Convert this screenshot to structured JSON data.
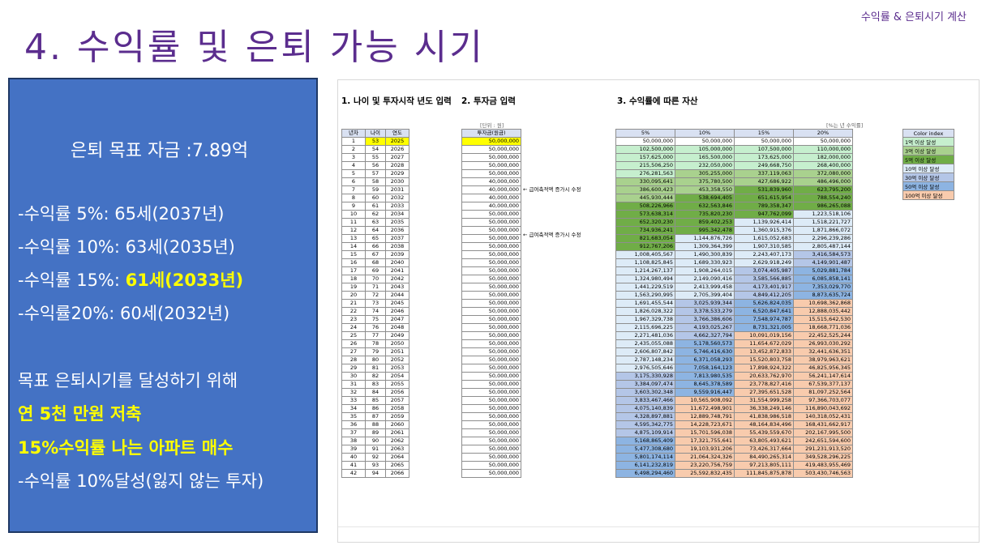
{
  "header": {
    "subtitle": "수익률 & 은퇴시기 계산",
    "title": "4. 수익률 및 은퇴 가능 시기"
  },
  "panel": {
    "goal": "은퇴 목표 자금 :7.89억",
    "r5": "-수익률 5%: 65세(2037년)",
    "r10": "-수익률 10%: 63세(2035년)",
    "r15_prefix": "-수익률 15%: ",
    "r15_value": "61세(2033년)",
    "r20": "-수익률20%: 60세(2032년)",
    "plan": "목표 은퇴시기를 달성하기 위해",
    "save": "연 5천 만원 저축",
    "apt": "15%수익률 나는 아파트 매수",
    "safe": "-수익률 10%달성(잃지 않는 투자)"
  },
  "sheet": {
    "section1": "1. 나이 및 투자시작 년도 입력",
    "section2": "2. 투자금 입력",
    "section3": "3. 수익률에 따른 자산",
    "unit_note": "[단위 : 원]",
    "rate_note": "[%는 년 수익률]",
    "col_year": "년차",
    "col_age": "나이",
    "col_yr": "연도",
    "col_invest": "투자금(원금)",
    "note_text": "← 급여축적액 증가시 수정",
    "rate_headers": [
      "5%",
      "10%",
      "15%",
      "20%"
    ],
    "legend_title": "Color index",
    "legend": [
      "1억 이상 달성",
      "3억 이상 달성",
      "5억 이상 달성",
      "10억 이상 달성",
      "30억 이상 달성",
      "50억 이상 달성",
      "100억 이상 달성"
    ],
    "legend_colors": [
      "#c6efce",
      "#a9d18e",
      "#70ad47",
      "#ddebf7",
      "#b4c6e7",
      "#8db4e2",
      "#f8cbad"
    ],
    "invest": [
      "50,000,000",
      "50,000,000",
      "50,000,000",
      "50,000,000",
      "50,000,000",
      "40,000,000",
      "40,000,000",
      "40,000,000",
      "40,000,000",
      "50,000,000",
      "50,000,000",
      "50,000,000",
      "50,000,000",
      "50,000,000",
      "50,000,000",
      "50,000,000",
      "50,000,000",
      "50,000,000",
      "50,000,000",
      "50,000,000",
      "50,000,000",
      "50,000,000",
      "50,000,000",
      "50,000,000",
      "50,000,000",
      "50,000,000",
      "50,000,000",
      "50,000,000",
      "50,000,000",
      "50,000,000",
      "50,000,000",
      "50,000,000",
      "50,000,000",
      "50,000,000",
      "50,000,000",
      "50,000,000",
      "50,000,000",
      "50,000,000",
      "50,000,000",
      "50,000,000",
      "50,000,000",
      "50,000,000"
    ],
    "r5": [
      "50,000,000",
      "102,500,000",
      "157,625,000",
      "215,506,250",
      "276,281,563",
      "330,095,641",
      "386,600,423",
      "445,930,444",
      "508,226,966",
      "573,638,314",
      "652,320,230",
      "734,936,241",
      "821,683,054",
      "912,767,206",
      "1,008,405,567",
      "1,108,825,845",
      "1,214,267,137",
      "1,324,980,494",
      "1,441,229,519",
      "1,563,290,995",
      "1,691,455,544",
      "1,826,028,322",
      "1,967,329,738",
      "2,115,696,225",
      "2,271,481,036",
      "2,435,055,088",
      "2,606,807,842",
      "2,787,148,234",
      "2,976,505,646",
      "3,175,330,928",
      "3,384,097,474",
      "3,603,302,348",
      "3,833,467,466",
      "4,075,140,839",
      "4,328,897,881",
      "4,595,342,775",
      "4,875,109,914",
      "5,168,865,409",
      "5,477,308,680",
      "5,801,174,114",
      "6,141,232,819",
      "6,498,294,460"
    ],
    "r10": [
      "50,000,000",
      "105,000,000",
      "165,500,000",
      "232,050,000",
      "305,255,000",
      "375,780,500",
      "453,358,550",
      "538,694,405",
      "632,563,846",
      "735,820,230",
      "859,402,253",
      "995,342,478",
      "1,144,876,726",
      "1,309,364,399",
      "1,490,300,839",
      "1,689,330,923",
      "1,908,264,015",
      "2,149,090,416",
      "2,413,999,458",
      "2,705,399,404",
      "3,025,939,344",
      "3,378,533,279",
      "3,766,386,606",
      "4,193,025,267",
      "4,662,327,794",
      "5,178,560,573",
      "5,746,416,630",
      "6,371,058,293",
      "7,058,164,123",
      "7,813,980,535",
      "8,645,378,589",
      "9,559,916,447",
      "10,565,908,092",
      "11,672,498,901",
      "12,889,748,791",
      "14,228,723,671",
      "15,701,596,038",
      "17,321,755,641",
      "19,103,931,206",
      "21,064,324,326",
      "23,220,756,759",
      "25,592,832,435"
    ],
    "r15": [
      "50,000,000",
      "107,500,000",
      "173,625,000",
      "249,668,750",
      "337,119,063",
      "427,686,922",
      "531,839,960",
      "651,615,954",
      "789,358,347",
      "947,762,099",
      "1,139,926,414",
      "1,360,915,376",
      "1,615,052,683",
      "1,907,310,585",
      "2,243,407,173",
      "2,629,918,249",
      "3,074,405,987",
      "3,585,566,885",
      "4,173,401,917",
      "4,849,412,205",
      "5,626,824,035",
      "6,520,847,641",
      "7,548,974,787",
      "8,731,321,005",
      "10,091,019,156",
      "11,654,672,029",
      "13,452,872,833",
      "15,520,803,758",
      "17,898,924,322",
      "20,633,762,970",
      "23,778,827,416",
      "27,395,651,528",
      "31,554,999,258",
      "36,338,249,146",
      "41,838,986,518",
      "48,164,834,496",
      "55,439,559,670",
      "63,805,493,621",
      "73,426,317,664",
      "84,490,265,314",
      "97,213,805,111",
      "111,845,875,878"
    ],
    "r20": [
      "50,000,000",
      "110,000,000",
      "182,000,000",
      "268,400,000",
      "372,080,000",
      "486,496,000",
      "623,795,200",
      "788,554,240",
      "986,265,088",
      "1,223,518,106",
      "1,518,221,727",
      "1,871,866,072",
      "2,296,239,286",
      "2,805,487,144",
      "3,416,584,573",
      "4,149,901,487",
      "5,029,881,784",
      "6,085,858,141",
      "7,353,029,770",
      "8,873,635,724",
      "10,698,362,868",
      "12,888,035,442",
      "15,515,642,530",
      "18,668,771,036",
      "22,452,525,244",
      "26,993,030,292",
      "32,441,636,351",
      "38,979,963,621",
      "46,825,956,345",
      "56,241,147,614",
      "67,539,377,137",
      "81,097,252,564",
      "97,366,703,077",
      "116,890,043,692",
      "140,318,052,431",
      "168,431,662,917",
      "202,167,995,500",
      "242,651,594,600",
      "291,231,913,520",
      "349,528,296,225",
      "419,483,955,469",
      "503,430,746,563"
    ]
  }
}
